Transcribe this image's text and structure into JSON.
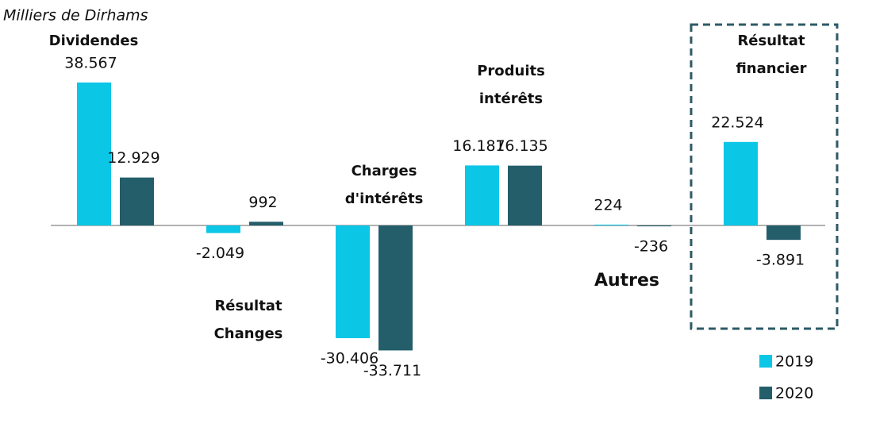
{
  "chart_data": {
    "type": "bar",
    "subtitle": "Milliers de Dirhams",
    "categories": [
      "Dividendes",
      "Résultat Changes",
      "Charges d'intérêts",
      "Produits intérêts",
      "Autres",
      "Résultat financier"
    ],
    "series": [
      {
        "name": "2019",
        "color": "#0cc6e6",
        "values": [
          38567,
          -2049,
          -30406,
          16187,
          224,
          22524
        ],
        "value_labels": [
          "38.567",
          "-2.049",
          "-30.406",
          "16.187",
          "224",
          "22.524"
        ]
      },
      {
        "name": "2020",
        "color": "#245e6b",
        "values": [
          12929,
          992,
          -33711,
          16135,
          -236,
          -3891
        ],
        "value_labels": [
          "12.929",
          "992",
          "-33.711",
          "16.135",
          "-236",
          "-3.891"
        ]
      }
    ],
    "ylim": [
      -40000,
      40000
    ]
  }
}
